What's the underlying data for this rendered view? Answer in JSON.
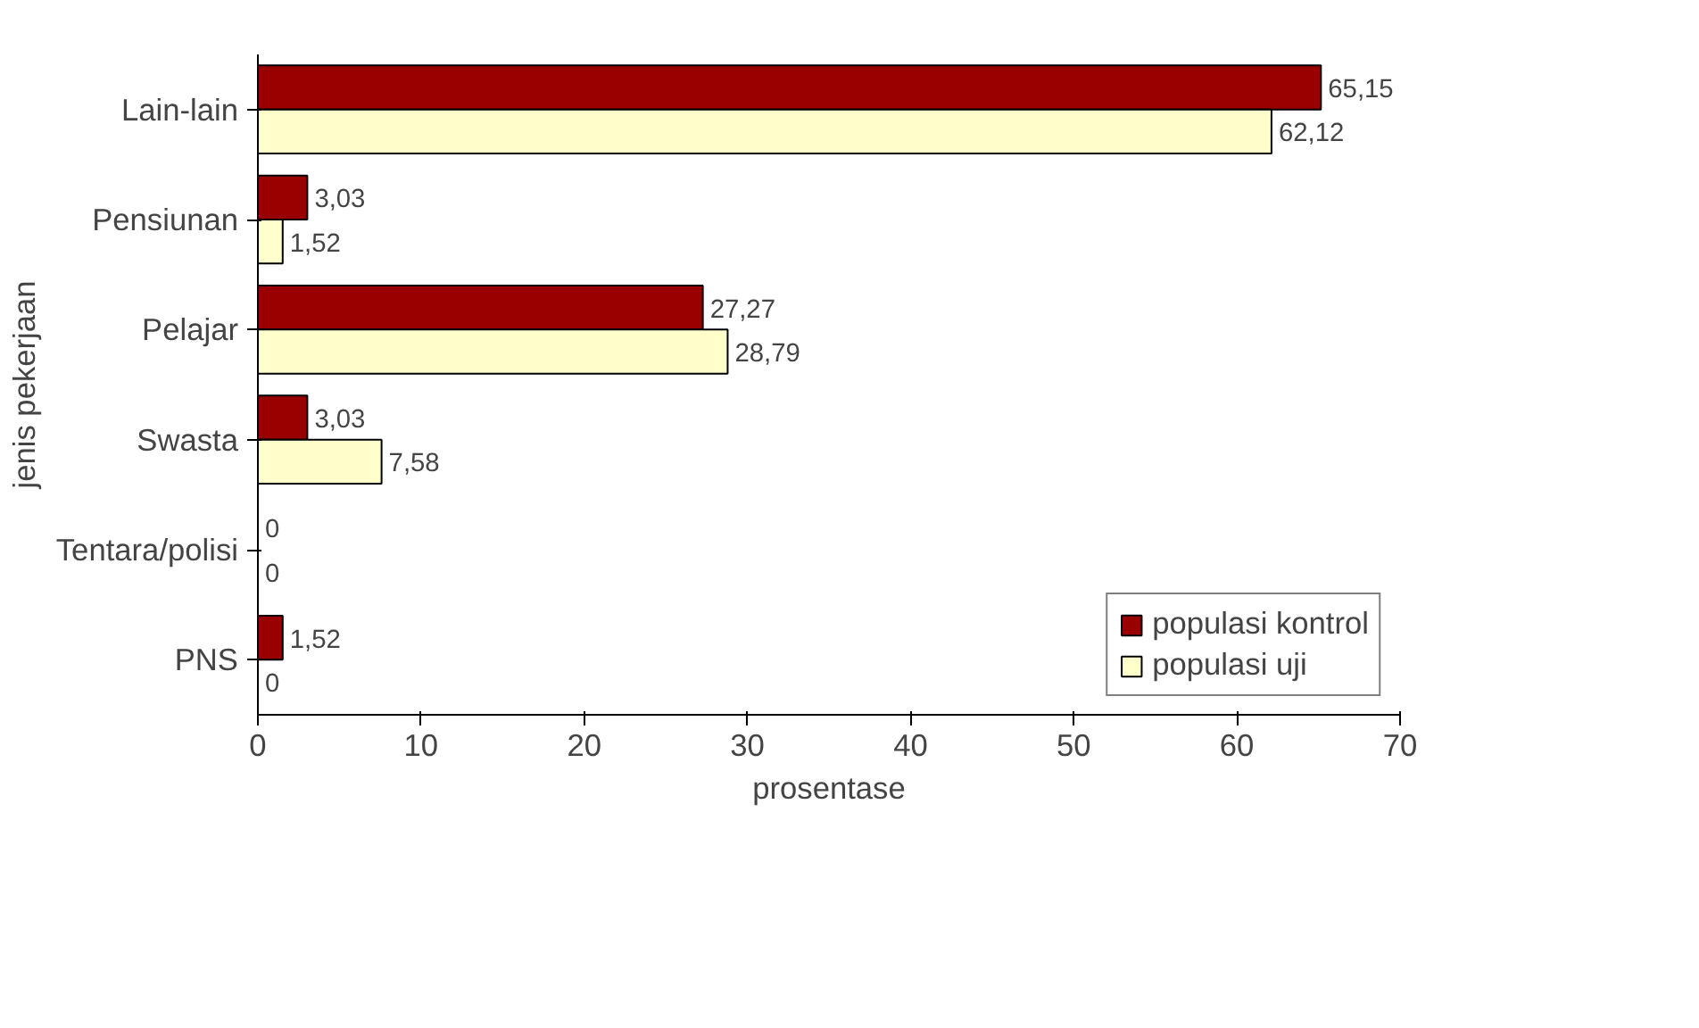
{
  "chart_data": {
    "type": "bar",
    "orientation": "horizontal",
    "xlabel": "prosentase",
    "ylabel": "jenis pekerjaan",
    "categories": [
      "Lain-lain",
      "Pensiunan",
      "Pelajar",
      "Swasta",
      "Tentara/polisi",
      "PNS"
    ],
    "series": [
      {
        "name": "populasi kontrol",
        "color": "#990000",
        "values": [
          65.15,
          3.03,
          27.27,
          3.03,
          0,
          1.52
        ],
        "value_labels": [
          "65,15",
          "3,03",
          "27,27",
          "3,03",
          "0",
          "1,52"
        ]
      },
      {
        "name": "populasi uji",
        "color": "#ffffcc",
        "values": [
          62.12,
          1.52,
          28.79,
          7.58,
          0,
          0
        ],
        "value_labels": [
          "62,12",
          "1,52",
          "28,79",
          "7,58",
          "0",
          "0"
        ]
      }
    ],
    "xlim": [
      0,
      70
    ],
    "xticks": [
      0,
      10,
      20,
      30,
      40,
      50,
      60,
      70
    ],
    "grid": false,
    "legend": "bottom right"
  }
}
